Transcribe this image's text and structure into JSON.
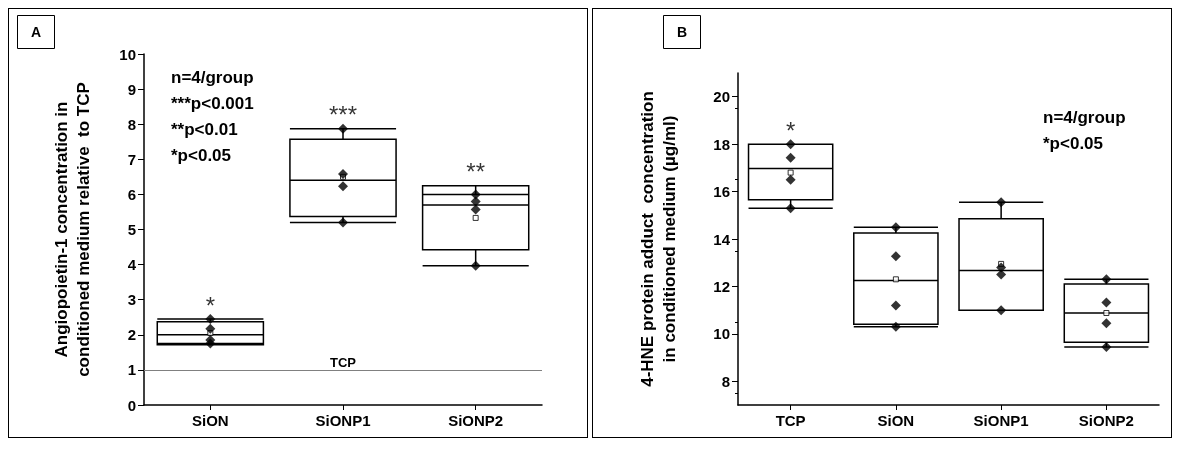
{
  "chart_data": [
    {
      "type": "box",
      "title": "A",
      "ylabel": "Angiopoietin-1 concentration in\nconditioned medium relative  to TCP",
      "categories": [
        "SiON",
        "SiONP1",
        "SiONP2"
      ],
      "boxes": [
        {
          "low": 1.75,
          "q1": 1.72,
          "median": 2.0,
          "q3": 2.37,
          "high": 2.45,
          "mean": 2.05
        },
        {
          "low": 5.2,
          "q1": 5.37,
          "median": 6.4,
          "q3": 7.57,
          "high": 7.87,
          "mean": 6.5
        },
        {
          "low": 3.97,
          "q1": 4.42,
          "median": 5.7,
          "q3": 6.25,
          "high": 6.0,
          "mean": 5.33
        }
      ],
      "series": [
        {
          "type": "scatter",
          "color": "#000000",
          "x": [
            "SiON",
            "SiON",
            "SiON",
            "SiON",
            "SiONP1",
            "SiONP1",
            "SiONP1",
            "SiONP1",
            "SiONP2",
            "SiONP2",
            "SiONP2",
            "SiONP2"
          ],
          "values": [
            2.45,
            1.85,
            2.17,
            1.75,
            6.23,
            6.58,
            5.2,
            7.87,
            5.57,
            6.0,
            5.8,
            3.97
          ]
        }
      ],
      "marker": "diamond",
      "ylim": [
        0,
        10
      ],
      "yticks": [
        0,
        1,
        2,
        3,
        4,
        5,
        6,
        7,
        8,
        9,
        10
      ],
      "grid": false,
      "ref_lines": [
        {
          "axis": "y",
          "value": 1,
          "label": "TCP",
          "color": "#808080"
        }
      ],
      "annotations": [
        "n=4/group",
        "***p<0.001",
        "**p<0.01",
        "*p<0.05",
        {
          "text": "*",
          "x": "SiON",
          "y": 2.45
        },
        {
          "text": "***",
          "x": "SiONP1",
          "y": 7.87
        },
        {
          "text": "**",
          "x": "SiONP2",
          "y": 6.25
        }
      ]
    },
    {
      "type": "box",
      "title": "B",
      "ylabel": "4-HNE protein adduct  concentration\nin conditioned medium (µg/ml)",
      "categories": [
        "TCP",
        "SiON",
        "SiONP1",
        "SiONP2"
      ],
      "boxes": [
        {
          "low": 15.3,
          "q1": 15.65,
          "median": 16.97,
          "q3": 18.0,
          "high": 18.0,
          "mean": 16.8
        },
        {
          "low": 10.3,
          "q1": 10.4,
          "median": 12.25,
          "q3": 14.25,
          "high": 14.5,
          "mean": 12.3
        },
        {
          "low": 11.0,
          "q1": 11.0,
          "median": 12.67,
          "q3": 14.85,
          "high": 15.55,
          "mean": 12.95
        },
        {
          "low": 9.45,
          "q1": 9.65,
          "median": 10.88,
          "q3": 12.1,
          "high": 12.3,
          "mean": 10.88
        }
      ],
      "series": [
        {
          "type": "scatter",
          "color": "#000000",
          "x": [
            "TCP",
            "TCP",
            "TCP",
            "TCP",
            "SiON",
            "SiON",
            "SiON",
            "SiON",
            "SiONP1",
            "SiONP1",
            "SiONP1",
            "SiONP1",
            "SiONP2",
            "SiONP2",
            "SiONP2",
            "SiONP2"
          ],
          "values": [
            17.43,
            18.0,
            16.5,
            15.3,
            11.2,
            13.27,
            14.5,
            10.3,
            12.5,
            11.0,
            12.8,
            15.55,
            11.32,
            12.3,
            10.45,
            9.45
          ]
        }
      ],
      "marker": "diamond",
      "ylim": [
        7,
        21
      ],
      "yticks": [
        8,
        10,
        12,
        14,
        16,
        18,
        20
      ],
      "grid": false,
      "annotations": [
        "n=4/group",
        "*p<0.05",
        {
          "text": "*",
          "x": "TCP",
          "y": 18.0
        }
      ]
    }
  ]
}
